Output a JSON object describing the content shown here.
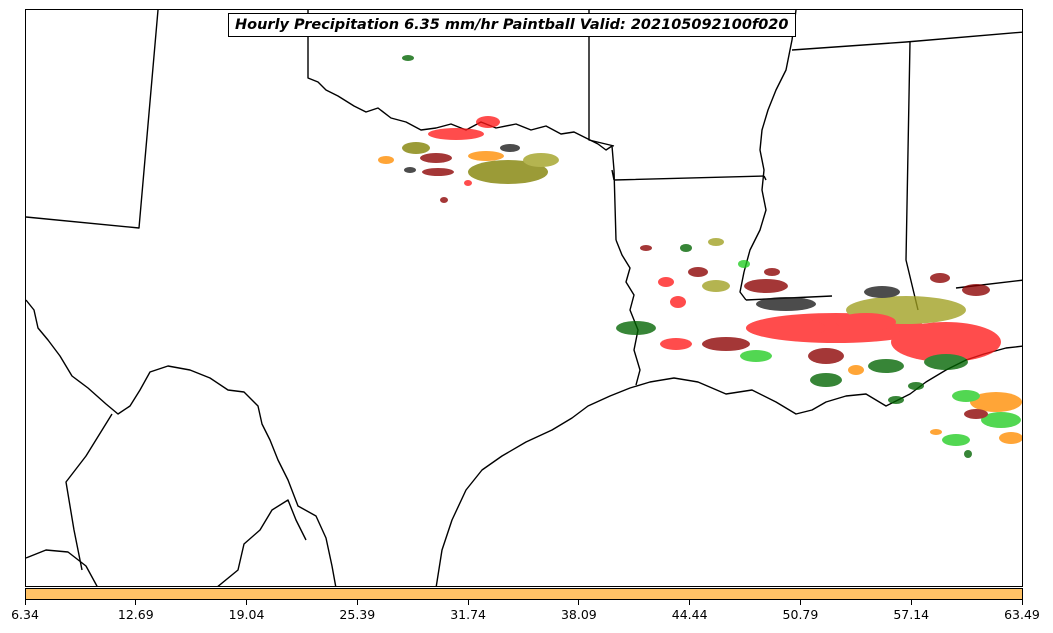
{
  "title": "Hourly Precipitation 6.35 mm/hr Paintball Valid: 202105092100f020",
  "colorbar": {
    "color": "#ffc266",
    "tick_labels": [
      "6.34",
      "12.69",
      "19.04",
      "25.39",
      "31.74",
      "38.09",
      "44.44",
      "50.79",
      "57.14",
      "63.49"
    ]
  },
  "map": {
    "region": "south-central-united-states",
    "boundary_color": "#000000",
    "member_colors": [
      "#ff1a1a",
      "#7f7f00",
      "#8b0000",
      "#006400",
      "#22cc22",
      "#ff8c00",
      "#1a1a1a",
      "#a0a020"
    ]
  }
}
